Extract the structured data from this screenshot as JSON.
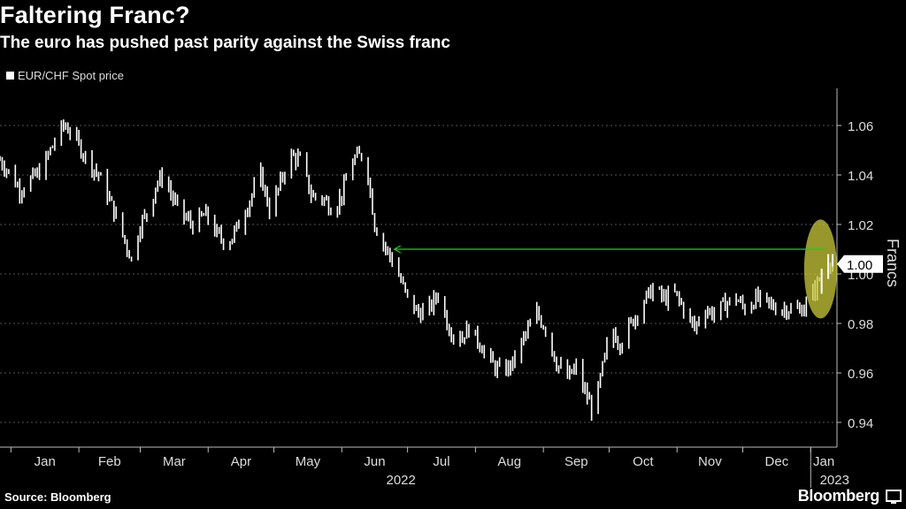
{
  "header": {
    "title": "Faltering Franc?",
    "subtitle": "The euro has pushed past parity against the Swiss franc"
  },
  "footer": {
    "source": "Source: Bloomberg",
    "brand": "Bloomberg"
  },
  "colors": {
    "background": "#000000",
    "bars": "#ffffff",
    "grid": "#555555",
    "arrow": "#22cc22",
    "highlight": "#c9c93a"
  },
  "chart_data": {
    "type": "line",
    "series": [
      {
        "name": "EUR/CHF Spot price",
        "x": [
          "2021-12-27",
          "2022-01-01",
          "2022-01-05",
          "2022-01-10",
          "2022-01-15",
          "2022-01-20",
          "2022-01-25",
          "2022-01-28",
          "2022-02-01",
          "2022-02-05",
          "2022-02-10",
          "2022-02-15",
          "2022-02-20",
          "2022-02-25",
          "2022-03-01",
          "2022-03-05",
          "2022-03-08",
          "2022-03-12",
          "2022-03-16",
          "2022-03-20",
          "2022-03-25",
          "2022-03-31",
          "2022-04-05",
          "2022-04-10",
          "2022-04-15",
          "2022-04-20",
          "2022-04-25",
          "2022-04-29",
          "2022-05-03",
          "2022-05-08",
          "2022-05-13",
          "2022-05-18",
          "2022-05-24",
          "2022-05-28",
          "2022-06-01",
          "2022-06-06",
          "2022-06-10",
          "2022-06-13",
          "2022-06-16",
          "2022-06-20",
          "2022-06-25",
          "2022-07-01",
          "2022-07-06",
          "2022-07-11",
          "2022-07-15",
          "2022-07-20",
          "2022-07-25",
          "2022-07-29",
          "2022-08-03",
          "2022-08-08",
          "2022-08-13",
          "2022-08-18",
          "2022-08-23",
          "2022-08-29",
          "2022-09-02",
          "2022-09-07",
          "2022-09-12",
          "2022-09-16",
          "2022-09-20",
          "2022-09-24",
          "2022-09-28",
          "2022-10-02",
          "2022-10-06",
          "2022-10-11",
          "2022-10-16",
          "2022-10-21",
          "2022-10-26",
          "2022-10-31",
          "2022-11-04",
          "2022-11-09",
          "2022-11-13",
          "2022-11-18",
          "2022-11-23",
          "2022-11-28",
          "2022-12-02",
          "2022-12-07",
          "2022-12-12",
          "2022-12-17",
          "2022-12-22",
          "2022-12-27",
          "2022-12-30",
          "2023-01-03",
          "2023-01-06",
          "2023-01-09",
          "2023-01-11"
        ],
        "values": [
          1.046,
          1.04,
          1.034,
          1.038,
          1.042,
          1.052,
          1.06,
          1.058,
          1.052,
          1.046,
          1.04,
          1.03,
          1.018,
          1.006,
          1.02,
          1.026,
          1.036,
          1.04,
          1.03,
          1.024,
          1.02,
          1.024,
          1.016,
          1.012,
          1.02,
          1.03,
          1.04,
          1.026,
          1.034,
          1.048,
          1.046,
          1.032,
          1.03,
          1.026,
          1.032,
          1.046,
          1.048,
          1.04,
          1.02,
          1.012,
          1.004,
          0.99,
          0.984,
          0.986,
          0.992,
          0.978,
          0.974,
          0.978,
          0.972,
          0.964,
          0.96,
          0.964,
          0.974,
          0.984,
          0.978,
          0.964,
          0.958,
          0.962,
          0.952,
          0.944,
          0.962,
          0.978,
          0.972,
          0.98,
          0.988,
          0.994,
          0.99,
          0.992,
          0.986,
          0.978,
          0.986,
          0.984,
          0.988,
          0.99,
          0.986,
          0.99,
          0.988,
          0.986,
          0.986,
          0.985,
          0.988,
          0.994,
          1.0,
          1.006,
          1.005
        ]
      }
    ],
    "last_value_label": "1.00",
    "arrow_annotation": {
      "from_x": "2023-01-08",
      "to_x": "2022-06-25",
      "y": 1.01
    },
    "highlight_ellipse": {
      "x_start": "2022-12-29",
      "x_end": "2023-01-13",
      "y_low": 0.982,
      "y_high": 1.022
    },
    "xticks": [
      "Jan",
      "Feb",
      "Mar",
      "Apr",
      "May",
      "Jun",
      "Jul",
      "Aug",
      "Sep",
      "Oct",
      "Nov",
      "Dec",
      "Jan"
    ],
    "xtick_dates": [
      "2022-01-01",
      "2022-02-01",
      "2022-03-01",
      "2022-04-01",
      "2022-05-01",
      "2022-06-01",
      "2022-07-01",
      "2022-08-01",
      "2022-09-01",
      "2022-10-01",
      "2022-11-01",
      "2022-12-01",
      "2023-01-01"
    ],
    "year_labels": [
      {
        "label": "2022",
        "at": "2022-06-28"
      },
      {
        "label": "2023",
        "at": "2023-01-01"
      }
    ],
    "yticks": [
      0.94,
      0.96,
      0.98,
      1.0,
      1.02,
      1.04,
      1.06
    ],
    "ytick_labels": [
      "0.94",
      "0.96",
      "0.98",
      "1.00",
      "1.02",
      "1.04",
      "1.06"
    ],
    "ylabel": "Francs",
    "xlim": [
      "2021-12-27",
      "2023-01-13"
    ],
    "ylim": [
      0.93,
      1.075
    ],
    "grid": "horizontal dashed",
    "legend": "top-left"
  }
}
